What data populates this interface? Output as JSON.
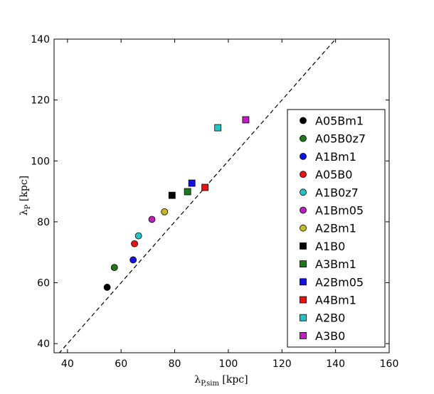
{
  "chart_data": {
    "type": "scatter",
    "xlabel": "λP,sim [kpc]",
    "ylabel": "λP [kpc]",
    "xlim": [
      35,
      160
    ],
    "ylim": [
      37,
      140
    ],
    "xticks": [
      40,
      60,
      80,
      100,
      120,
      140,
      160
    ],
    "yticks": [
      40,
      60,
      80,
      100,
      120,
      140
    ],
    "grid": false,
    "legend_position": "right",
    "reference_line": {
      "type": "identity",
      "style": "dashed",
      "color": "#000000"
    },
    "series": [
      {
        "name": "A05Bm1",
        "marker": "circle",
        "color": "#000000",
        "x": 54.8,
        "y": 58.5
      },
      {
        "name": "A05B0z7",
        "marker": "circle",
        "color": "#1a7a1a",
        "x": 57.5,
        "y": 65.0
      },
      {
        "name": "A1Bm1",
        "marker": "circle",
        "color": "#1010ee",
        "x": 64.5,
        "y": 67.5
      },
      {
        "name": "A05B0",
        "marker": "circle",
        "color": "#ee1111",
        "x": 65.0,
        "y": 72.8
      },
      {
        "name": "A1B0z7",
        "marker": "circle",
        "color": "#22c4c4",
        "x": 66.5,
        "y": 75.4
      },
      {
        "name": "A1Bm05",
        "marker": "circle",
        "color": "#c01fc0",
        "x": 71.5,
        "y": 80.8
      },
      {
        "name": "A2Bm1",
        "marker": "circle",
        "color": "#c4bc1f",
        "x": 76.2,
        "y": 83.3
      },
      {
        "name": "A1B0",
        "marker": "square",
        "color": "#000000",
        "x": 79.0,
        "y": 88.7
      },
      {
        "name": "A3Bm1",
        "marker": "square",
        "color": "#1a7a1a",
        "x": 84.8,
        "y": 89.9
      },
      {
        "name": "A2Bm05",
        "marker": "square",
        "color": "#1010ee",
        "x": 86.4,
        "y": 92.7
      },
      {
        "name": "A4Bm1",
        "marker": "square",
        "color": "#ee1111",
        "x": 91.3,
        "y": 91.3
      },
      {
        "name": "A2B0",
        "marker": "square",
        "color": "#22c4c4",
        "x": 96.1,
        "y": 110.9
      },
      {
        "name": "A3B0",
        "marker": "square",
        "color": "#c01fc0",
        "x": 106.5,
        "y": 113.5
      }
    ]
  }
}
